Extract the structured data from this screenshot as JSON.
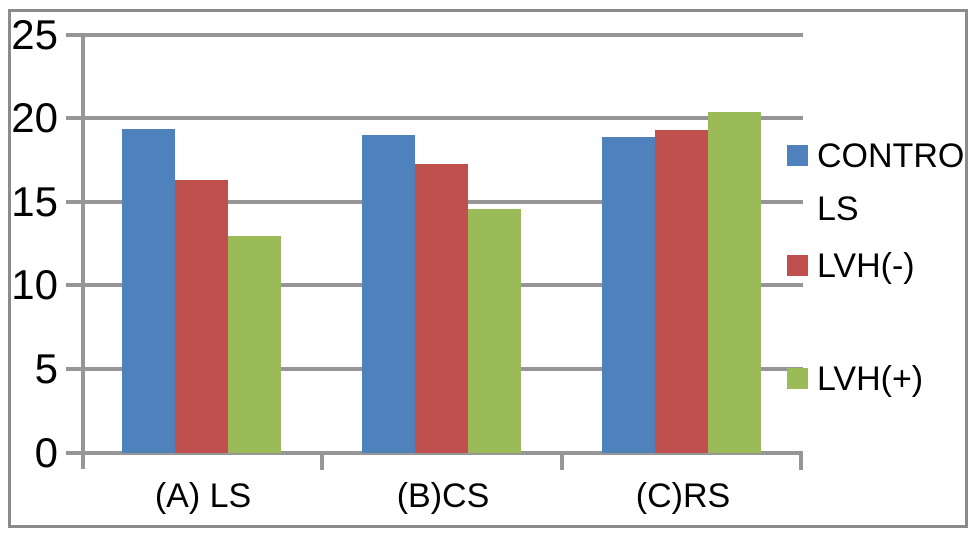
{
  "chart_data": {
    "type": "bar",
    "categories": [
      "(A) LS",
      "(B)CS",
      "(C)RS"
    ],
    "series": [
      {
        "name": "CONTROLS",
        "color": "#4F81BD",
        "values": [
          19.4,
          19.0,
          18.9
        ]
      },
      {
        "name": "LVH(-)",
        "color": "#C0504D",
        "values": [
          16.3,
          17.3,
          19.3
        ]
      },
      {
        "name": "LVH(+)",
        "color": "#9BBB59",
        "values": [
          13.0,
          14.6,
          20.4
        ]
      }
    ],
    "ylim": [
      0,
      25
    ],
    "y_ticks": [
      "25",
      "20",
      "15",
      "10",
      "5",
      "0"
    ],
    "grid": "horizontal",
    "legend_position": "right",
    "colors": {
      "gridline": "#969696",
      "frame_border": "#8b8b8b",
      "text": "#000000"
    }
  }
}
